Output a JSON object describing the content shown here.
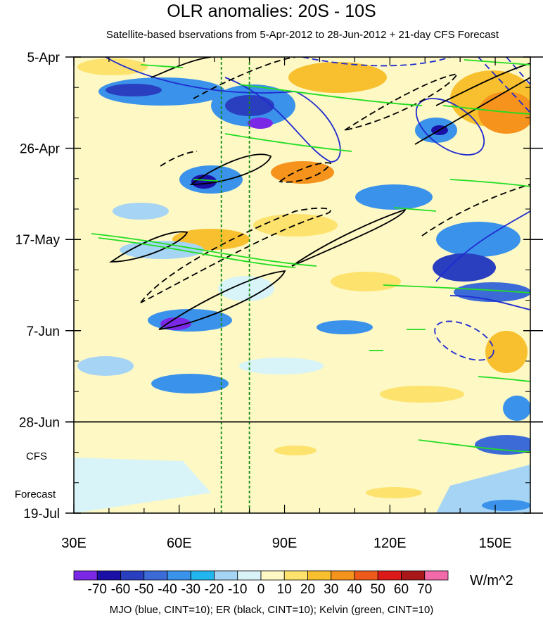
{
  "chart_data": {
    "type": "heatmap",
    "title": "OLR anomalies: 20S - 10S",
    "subtitle": "Satellite-based bservations from 5-Apr-2012 to 28-Jun-2012 + 21-day CFS Forecast",
    "x_axis": {
      "range": [
        30,
        160
      ],
      "ticks": [
        {
          "value": 30,
          "label": "30E"
        },
        {
          "value": 60,
          "label": "60E"
        },
        {
          "value": 90,
          "label": "90E"
        },
        {
          "value": 120,
          "label": "120E"
        },
        {
          "value": 150,
          "label": "150E"
        }
      ]
    },
    "y_axis": {
      "range": [
        "5-Apr-2012",
        "19-Jul-2012"
      ],
      "ticks": [
        {
          "date": "5-Apr",
          "label": "5-Apr"
        },
        {
          "date": "26-Apr",
          "label": "26-Apr"
        },
        {
          "date": "17-May",
          "label": "17-May"
        },
        {
          "date": "7-Jun",
          "label": "7-Jun"
        },
        {
          "date": "28-Jun",
          "label": "28-Jun"
        },
        {
          "date": "19-Jul",
          "label": "19-Jul"
        }
      ]
    },
    "observation_end": "28-Jun",
    "forecast_label": [
      "CFS",
      "Forecast"
    ],
    "reference_longitudes": [
      72,
      80
    ],
    "colorbar": {
      "units": "W/m^2",
      "labels": [
        "-70",
        "-60",
        "-50",
        "-40",
        "-30",
        "-20",
        "-10",
        "0",
        "10",
        "20",
        "30",
        "40",
        "50",
        "60",
        "70"
      ],
      "colors": [
        "#7a28e6",
        "#1a10a6",
        "#2a3ec0",
        "#3c6ad6",
        "#3a92ea",
        "#22b6ee",
        "#a6d4f4",
        "#d8f4f8",
        "#fdf8c4",
        "#fde36e",
        "#f8c02e",
        "#f6931c",
        "#ee5a1a",
        "#dc1a1a",
        "#a81818",
        "#f26aaa"
      ]
    },
    "contour_legend": "MJO (blue, CINT=10); ER (black, CINT=10); Kelvin (green, CINT=10)"
  }
}
